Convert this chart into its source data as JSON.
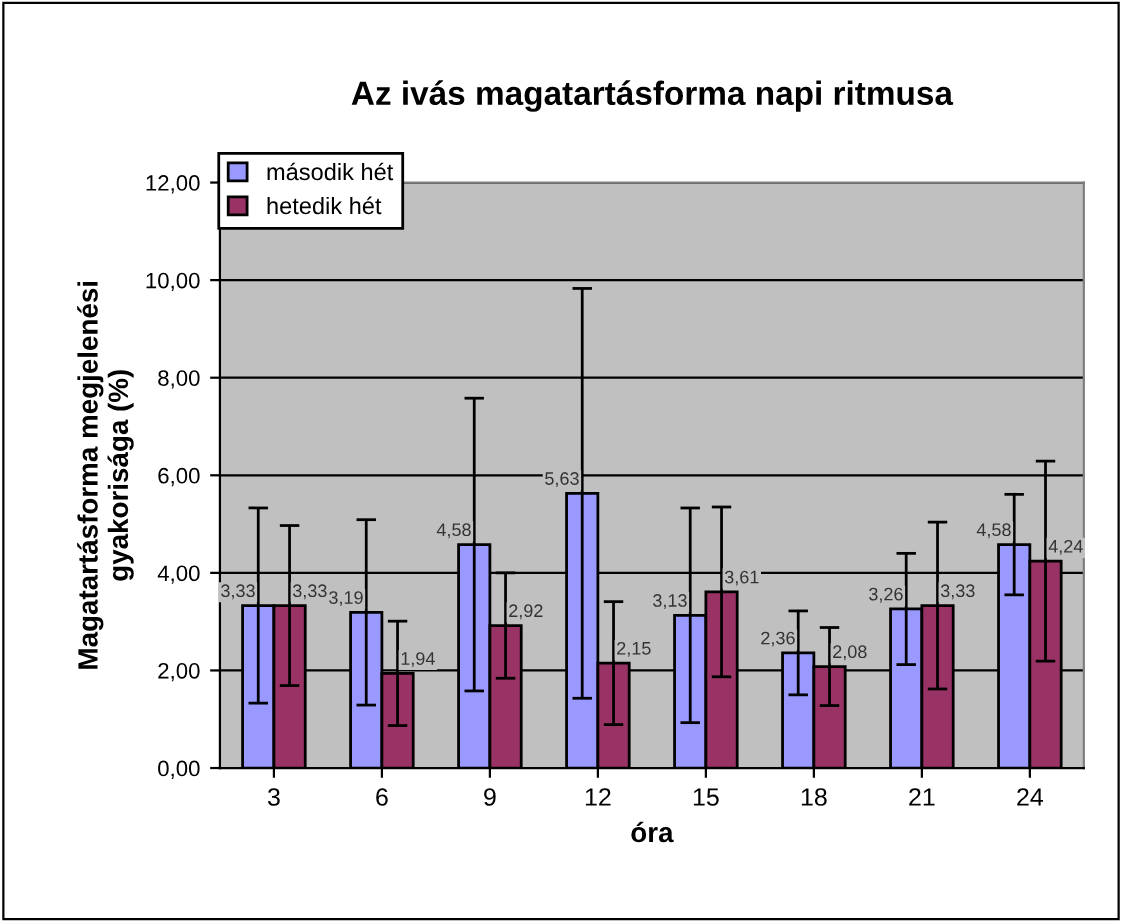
{
  "chart_data": {
    "type": "bar",
    "title": "Az ivás magatartásforma napi ritmusa",
    "xlabel": "óra",
    "ylabel": "Magatartásforma megjelenési\ngyakorisága (%)",
    "categories": [
      "3",
      "6",
      "9",
      "12",
      "15",
      "18",
      "21",
      "24"
    ],
    "series": [
      {
        "name": "második hét",
        "color": "#9999ff",
        "values": [
          3.33,
          3.19,
          4.58,
          5.63,
          3.13,
          2.36,
          3.26,
          4.58
        ],
        "errors": [
          2.0,
          1.9,
          3.0,
          4.2,
          2.2,
          0.86,
          1.14,
          1.03
        ],
        "value_labels": [
          "3,33",
          "3,19",
          "4,58",
          "5,63",
          "3,13",
          "2,36",
          "3,26",
          "4,58"
        ]
      },
      {
        "name": "hetedik hét",
        "color": "#993366",
        "values": [
          3.33,
          1.94,
          2.92,
          2.15,
          3.61,
          2.08,
          3.33,
          4.24
        ],
        "errors": [
          1.64,
          1.07,
          1.08,
          1.26,
          1.74,
          0.8,
          1.71,
          2.05
        ],
        "value_labels": [
          "3,33",
          "1,94",
          "2,92",
          "2,15",
          "3,61",
          "2,08",
          "3,33",
          "4,24"
        ]
      }
    ],
    "ylim": [
      0,
      12
    ],
    "yticks": [
      {
        "value": 0,
        "label": "0,00"
      },
      {
        "value": 2,
        "label": "2,00"
      },
      {
        "value": 4,
        "label": "4,00"
      },
      {
        "value": 6,
        "label": "6,00"
      },
      {
        "value": 8,
        "label": "8,00"
      },
      {
        "value": 10,
        "label": "10,00"
      },
      {
        "value": 12,
        "label": "12,00"
      }
    ],
    "grid": "y",
    "legend": "top left"
  }
}
